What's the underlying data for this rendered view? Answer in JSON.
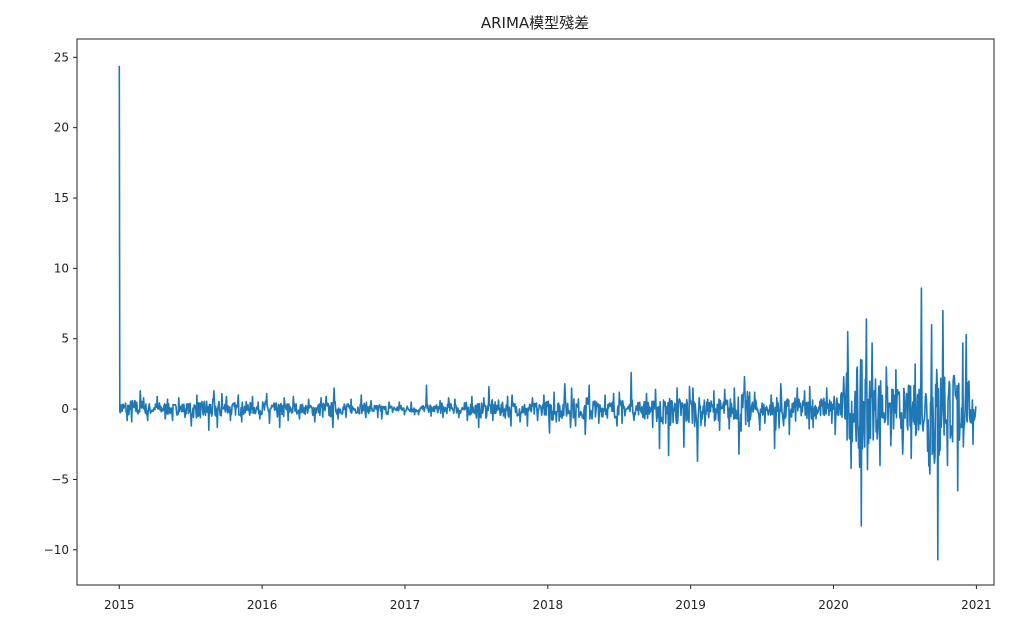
{
  "chart_data": {
    "type": "line",
    "title": "ARIMA模型殘差",
    "xlabel": "",
    "ylabel": "",
    "xlim": [
      "2014-09-15",
      "2021-02-15"
    ],
    "ylim": [
      -12.5,
      26.3
    ],
    "x_ticks": [
      "2015",
      "2016",
      "2017",
      "2018",
      "2019",
      "2020",
      "2021"
    ],
    "y_ticks": [
      25,
      20,
      15,
      10,
      5,
      0,
      -5,
      -10
    ],
    "y_tick_labels": [
      "25",
      "20",
      "15",
      "10",
      "5",
      "0",
      "−5",
      "−10"
    ],
    "grid": false,
    "line_color": "#1f77b4",
    "series_note_format": "monthly max/min of daily residuals",
    "monthly_range": [
      {
        "month": "2015-01",
        "max": 24.4,
        "min": -0.8
      },
      {
        "month": "2015-02",
        "max": 1.3,
        "min": -0.9
      },
      {
        "month": "2015-03",
        "max": 0.8,
        "min": -0.8
      },
      {
        "month": "2015-04",
        "max": 0.9,
        "min": -0.7
      },
      {
        "month": "2015-05",
        "max": 0.7,
        "min": -0.8
      },
      {
        "month": "2015-06",
        "max": 0.8,
        "min": -0.6
      },
      {
        "month": "2015-07",
        "max": 1.0,
        "min": -1.2
      },
      {
        "month": "2015-08",
        "max": 1.3,
        "min": -1.5
      },
      {
        "month": "2015-09",
        "max": 1.1,
        "min": -1.3
      },
      {
        "month": "2015-10",
        "max": 0.9,
        "min": -0.8
      },
      {
        "month": "2015-11",
        "max": 1.0,
        "min": -0.9
      },
      {
        "month": "2015-12",
        "max": 0.9,
        "min": -0.7
      },
      {
        "month": "2016-01",
        "max": 1.1,
        "min": -1.0
      },
      {
        "month": "2016-02",
        "max": 0.8,
        "min": -1.3
      },
      {
        "month": "2016-03",
        "max": 0.9,
        "min": -0.8
      },
      {
        "month": "2016-04",
        "max": 0.7,
        "min": -0.7
      },
      {
        "month": "2016-05",
        "max": 0.8,
        "min": -0.9
      },
      {
        "month": "2016-06",
        "max": 0.9,
        "min": -1.3
      },
      {
        "month": "2016-07",
        "max": 1.5,
        "min": -0.7
      },
      {
        "month": "2016-08",
        "max": 0.7,
        "min": -0.6
      },
      {
        "month": "2016-09",
        "max": 1.0,
        "min": -0.6
      },
      {
        "month": "2016-10",
        "max": 0.6,
        "min": -0.6
      },
      {
        "month": "2016-11",
        "max": 0.5,
        "min": -0.7
      },
      {
        "month": "2016-12",
        "max": 0.5,
        "min": -0.4
      },
      {
        "month": "2017-01",
        "max": 0.5,
        "min": -0.4
      },
      {
        "month": "2017-02",
        "max": 1.7,
        "min": -0.4
      },
      {
        "month": "2017-03",
        "max": 0.6,
        "min": -0.5
      },
      {
        "month": "2017-04",
        "max": 0.8,
        "min": -0.6
      },
      {
        "month": "2017-05",
        "max": 0.7,
        "min": -0.6
      },
      {
        "month": "2017-06",
        "max": 0.9,
        "min": -0.8
      },
      {
        "month": "2017-07",
        "max": 0.8,
        "min": -1.3
      },
      {
        "month": "2017-08",
        "max": 1.6,
        "min": -0.8
      },
      {
        "month": "2017-09",
        "max": 0.9,
        "min": -1.2
      },
      {
        "month": "2017-10",
        "max": 1.0,
        "min": -0.9
      },
      {
        "month": "2017-11",
        "max": 0.8,
        "min": -1.2
      },
      {
        "month": "2017-12",
        "max": 1.0,
        "min": -0.8
      },
      {
        "month": "2018-01",
        "max": 1.2,
        "min": -1.7
      },
      {
        "month": "2018-02",
        "max": 1.8,
        "min": -1.3
      },
      {
        "month": "2018-03",
        "max": 1.5,
        "min": -1.2
      },
      {
        "month": "2018-04",
        "max": 1.7,
        "min": -1.8
      },
      {
        "month": "2018-05",
        "max": 1.0,
        "min": -1.0
      },
      {
        "month": "2018-06",
        "max": 1.1,
        "min": -1.2
      },
      {
        "month": "2018-07",
        "max": 1.2,
        "min": -1.0
      },
      {
        "month": "2018-08",
        "max": 2.6,
        "min": -0.8
      },
      {
        "month": "2018-09",
        "max": 1.1,
        "min": -1.3
      },
      {
        "month": "2018-10",
        "max": 1.4,
        "min": -2.8
      },
      {
        "month": "2018-11",
        "max": 1.5,
        "min": -3.3
      },
      {
        "month": "2018-12",
        "max": 1.6,
        "min": -2.7
      },
      {
        "month": "2019-01",
        "max": 1.5,
        "min": -3.7
      },
      {
        "month": "2019-02",
        "max": 1.3,
        "min": -1.2
      },
      {
        "month": "2019-03",
        "max": 1.4,
        "min": -1.5
      },
      {
        "month": "2019-04",
        "max": 1.5,
        "min": -1.4
      },
      {
        "month": "2019-05",
        "max": 2.3,
        "min": -3.2
      },
      {
        "month": "2019-06",
        "max": 1.2,
        "min": -1.5
      },
      {
        "month": "2019-07",
        "max": 1.0,
        "min": -1.0
      },
      {
        "month": "2019-08",
        "max": 1.8,
        "min": -2.8
      },
      {
        "month": "2019-09",
        "max": 1.5,
        "min": -1.8
      },
      {
        "month": "2019-10",
        "max": 1.3,
        "min": -1.4
      },
      {
        "month": "2019-11",
        "max": 1.6,
        "min": -1.3
      },
      {
        "month": "2019-12",
        "max": 1.5,
        "min": -1.0
      },
      {
        "month": "2020-01",
        "max": 2.3,
        "min": -1.8
      },
      {
        "month": "2020-02",
        "max": 5.5,
        "min": -4.2
      },
      {
        "month": "2020-03",
        "max": 6.4,
        "min": -8.3
      },
      {
        "month": "2020-04",
        "max": 4.7,
        "min": -4.0
      },
      {
        "month": "2020-05",
        "max": 3.0,
        "min": -2.6
      },
      {
        "month": "2020-06",
        "max": 2.8,
        "min": -3.2
      },
      {
        "month": "2020-07",
        "max": 3.2,
        "min": -3.5
      },
      {
        "month": "2020-08",
        "max": 8.6,
        "min": -3.0
      },
      {
        "month": "2020-09",
        "max": 6.0,
        "min": -10.7
      },
      {
        "month": "2020-10",
        "max": 7.0,
        "min": -4.0
      },
      {
        "month": "2020-11",
        "max": 4.7,
        "min": -5.8
      },
      {
        "month": "2020-12",
        "max": 5.3,
        "min": -2.5
      }
    ]
  }
}
